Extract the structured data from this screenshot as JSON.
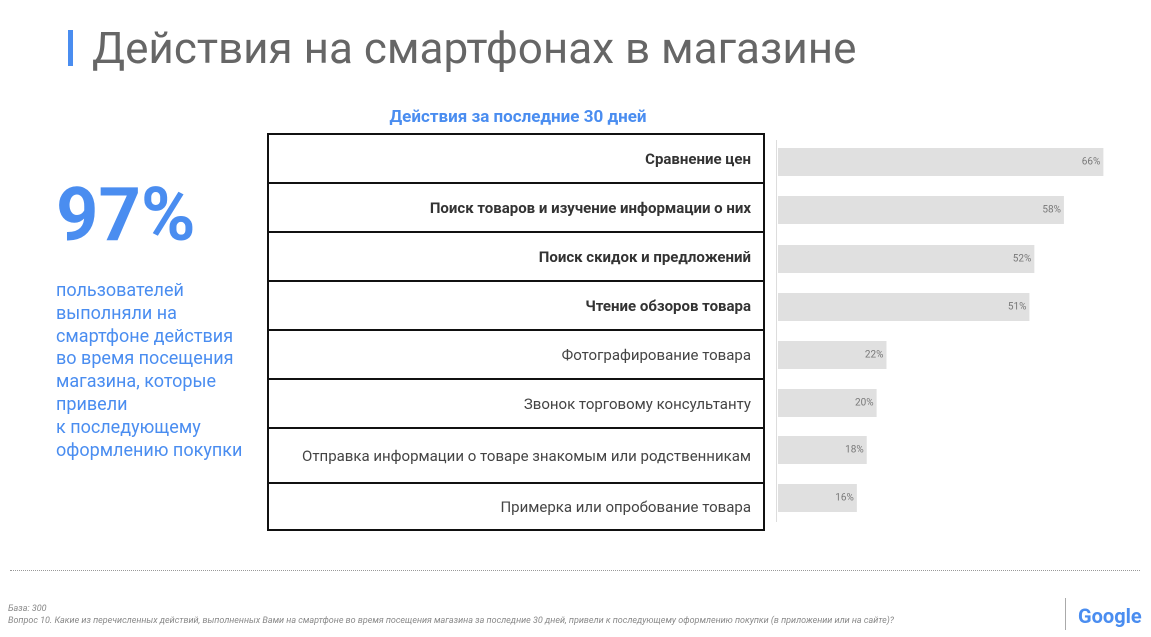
{
  "title": "Действия на смартфонах в магазине",
  "stat": "97%",
  "description": [
    "пользователей",
    "выполняли на",
    "смартфоне действия",
    "во время посещения",
    "магазина, которые",
    "привели",
    "к последующему",
    "оформлению покупки"
  ],
  "chart_data": {
    "type": "bar",
    "orientation": "horizontal",
    "title": "Действия за последние 30 дней",
    "categories": [
      "Сравнение цен",
      "Поиск товаров и изучение информации о них",
      "Поиск скидок и предложений",
      "Чтение обзоров товара",
      "Фотографирование товара",
      "Звонок торговому консультанту",
      "Отправка информации о товаре знакомым или родственникам",
      "Примерка или опробование товара"
    ],
    "values": [
      66,
      58,
      52,
      51,
      22,
      20,
      18,
      16
    ],
    "value_labels": [
      "66%",
      "58%",
      "52%",
      "51%",
      "22%",
      "20%",
      "18%",
      "16%"
    ],
    "color": "#e0e0e0"
  },
  "footer": {
    "base": "База: 300",
    "question": "Вопрос 10. Какие из перечисленных действий, выполненных Вами на смартфоне во время посещения магазина за последние 30 дней, привели к последующему оформлению покупки (в приложении или на сайте)?",
    "logo": "Google"
  }
}
